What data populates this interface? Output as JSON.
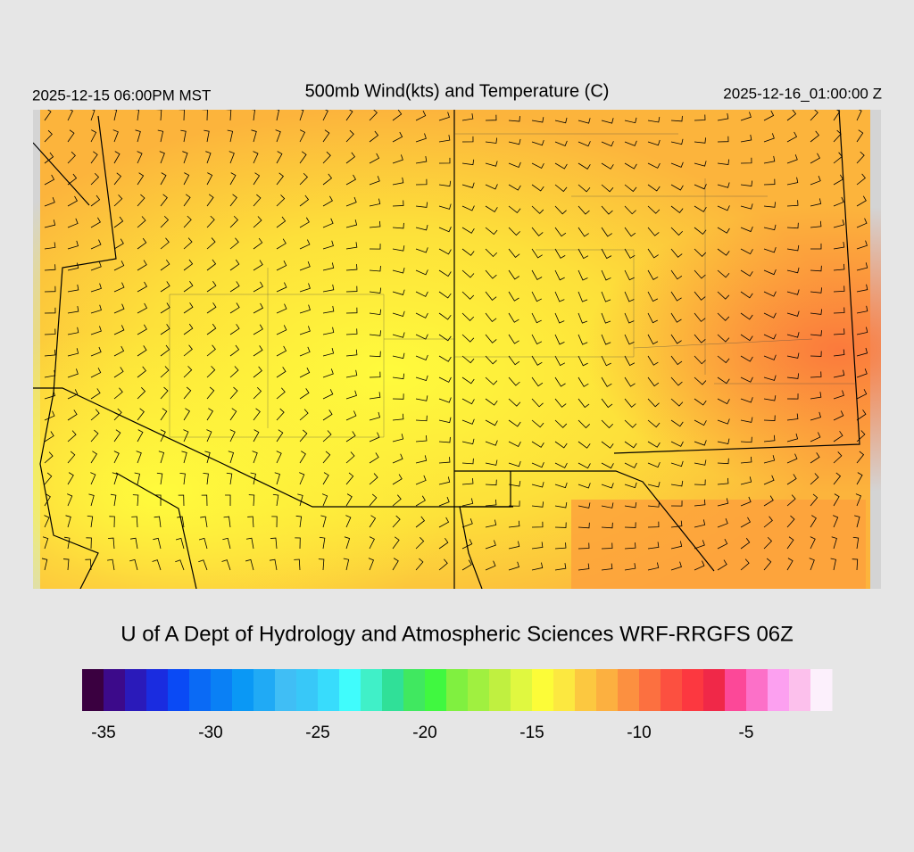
{
  "header": {
    "valid_local": "2025-12-15 06:00PM MST",
    "title": "500mb Wind(kts) and Temperature (C)",
    "valid_utc": "2025-12-16_01:00:00 Z"
  },
  "footer": {
    "credit": "U of A Dept of Hydrology and Atmospheric Sciences WRF-RRGFS 06Z"
  },
  "colorbar": {
    "range": [
      -36,
      -1
    ],
    "ticks": [
      -35,
      -30,
      -25,
      -20,
      -15,
      -10,
      -5
    ],
    "colors": [
      "#3a0040",
      "#3c0a8a",
      "#2a1aba",
      "#1a2ce0",
      "#0a4af5",
      "#0a6af5",
      "#0a80f5",
      "#0a98f5",
      "#20aaf5",
      "#40bef5",
      "#38c8f8",
      "#38dcfc",
      "#40fcfc",
      "#40f0c8",
      "#30e098",
      "#40e860",
      "#40f840",
      "#80f040",
      "#a0f040",
      "#c0f040",
      "#e0f840",
      "#fcfc38",
      "#fce840",
      "#fcc840",
      "#fcb040",
      "#fc9040",
      "#fc7040",
      "#fc5040",
      "#fc3840",
      "#f02848",
      "#fc4898",
      "#fc70c8",
      "#fca0f0",
      "#fcc0ec",
      "#fcf0fc"
    ]
  }
}
